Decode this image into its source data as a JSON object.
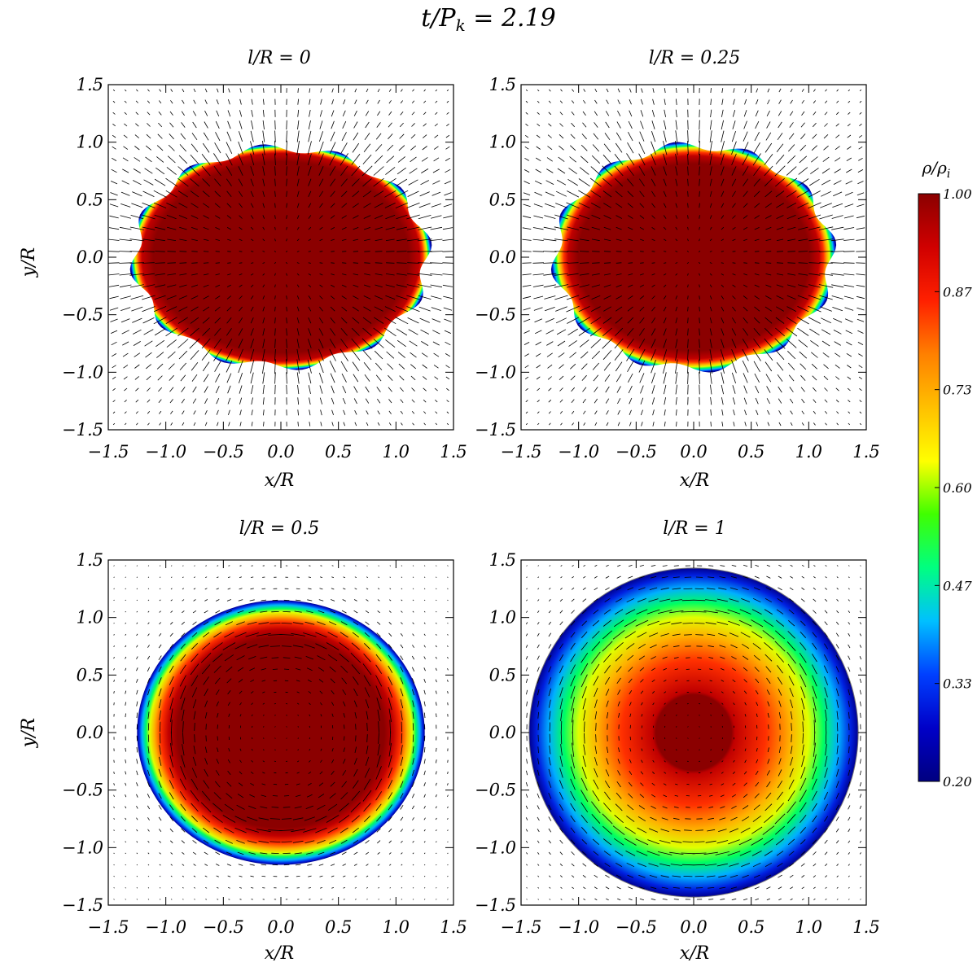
{
  "figure": {
    "title": "t/P",
    "title_sub": "k",
    "title_value": " = 2.19",
    "colorbar": {
      "label": "ρ/ρ",
      "label_sub": "i",
      "range": [
        0.2,
        1.0
      ],
      "ticks": [
        "1.00",
        "0.87",
        "0.73",
        "0.60",
        "0.47",
        "0.33",
        "0.20"
      ],
      "colormap": [
        "#000080",
        "#0000c8",
        "#0040ff",
        "#00c0ff",
        "#00ff80",
        "#40ff00",
        "#ffff00",
        "#ffc000",
        "#ff8000",
        "#ff2000",
        "#d00000",
        "#8b0000"
      ]
    }
  },
  "chart_data": [
    {
      "type": "heatmap",
      "title": "l/R = 0",
      "xlabel": "x/R",
      "ylabel": "y/R",
      "xlim": [
        -1.5,
        1.5
      ],
      "ylim": [
        -1.5,
        1.5
      ],
      "xticks": [
        "−1.5",
        "−1.0",
        "−0.5",
        "0.0",
        "0.5",
        "1.0",
        "1.5"
      ],
      "yticks": [
        "−1.5",
        "−1.0",
        "−0.5",
        "0.0",
        "0.5",
        "1.0",
        "1.5"
      ],
      "x_extent": 1.27,
      "y_extent": 0.95,
      "shell": 0.08,
      "ring_amplitude": 0.04,
      "flow": "radial"
    },
    {
      "type": "heatmap",
      "title": "l/R = 0.25",
      "xlabel": "x/R",
      "ylabel": "y/R",
      "xlim": [
        -1.5,
        1.5
      ],
      "ylim": [
        -1.5,
        1.5
      ],
      "xticks": [
        "−1.5",
        "−1.0",
        "−0.5",
        "0.0",
        "0.5",
        "1.0",
        "1.5"
      ],
      "yticks": [
        "−1.5",
        "−1.0",
        "−0.5",
        "0.0",
        "0.5",
        "1.0",
        "1.5"
      ],
      "x_extent": 1.2,
      "y_extent": 0.97,
      "shell": 0.12,
      "ring_amplitude": 0.04,
      "flow": "radial"
    },
    {
      "type": "heatmap",
      "title": "l/R = 0.5",
      "xlabel": "x/R",
      "ylabel": "y/R",
      "xlim": [
        -1.5,
        1.5
      ],
      "ylim": [
        -1.5,
        1.5
      ],
      "xticks": [
        "−1.5",
        "−1.0",
        "−0.5",
        "0.0",
        "0.5",
        "1.0",
        "1.5"
      ],
      "yticks": [
        "−1.5",
        "−1.0",
        "−0.5",
        "0.0",
        "0.5",
        "1.0",
        "1.5"
      ],
      "x_extent": 1.25,
      "y_extent": 1.15,
      "shell": 0.22,
      "ring_amplitude": 0.0,
      "flow": "vortex"
    },
    {
      "type": "heatmap",
      "title": "l/R = 1",
      "xlabel": "x/R",
      "ylabel": "y/R",
      "xlim": [
        -1.5,
        1.5
      ],
      "ylim": [
        -1.5,
        1.5
      ],
      "xticks": [
        "−1.5",
        "−1.0",
        "−0.5",
        "0.0",
        "0.5",
        "1.0",
        "1.5"
      ],
      "yticks": [
        "−1.5",
        "−1.0",
        "−0.5",
        "0.0",
        "0.5",
        "1.0",
        "1.5"
      ],
      "x_extent": 1.43,
      "y_extent": 1.43,
      "shell": 0.75,
      "ring_amplitude": 0.0,
      "flow": "vortex"
    }
  ]
}
